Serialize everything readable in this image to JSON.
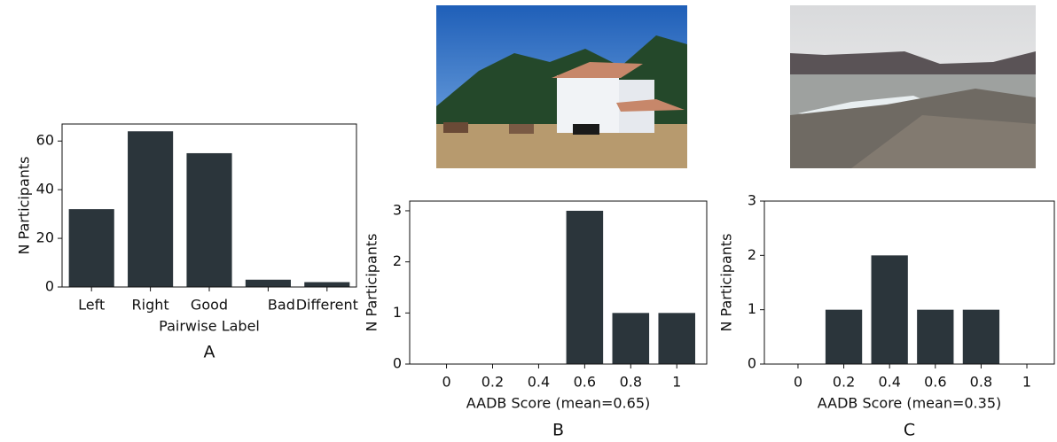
{
  "chart_data": [
    {
      "type": "bar",
      "panel_label": "A",
      "xlabel": "Pairwise Label",
      "ylabel": "N Participants",
      "categories": [
        "Left",
        "Right",
        "Good",
        "Bad",
        "Different"
      ],
      "values": [
        32,
        64,
        55,
        3,
        2
      ],
      "color": "#2b353b",
      "ylim": [
        0,
        67
      ],
      "yticks": [
        0,
        20,
        40,
        60
      ]
    },
    {
      "type": "bar",
      "panel_label": "B",
      "xlabel": "AADB Score (mean=0.65)",
      "ylabel": "N Participants",
      "x": [
        0,
        0.2,
        0.4,
        0.6,
        0.8,
        1
      ],
      "values": [
        0,
        0,
        0,
        3,
        1,
        1
      ],
      "color": "#2b353b",
      "xlim": [
        -0.16,
        1.13
      ],
      "xticks": [
        0,
        0.2,
        0.4,
        0.6,
        0.8,
        1
      ],
      "ylim": [
        0,
        3.19
      ],
      "yticks": [
        0,
        1,
        2,
        3
      ]
    },
    {
      "type": "bar",
      "panel_label": "C",
      "xlabel": "AADB Score (mean=0.35)",
      "ylabel": "N Participants",
      "x": [
        0,
        0.2,
        0.4,
        0.6,
        0.8,
        1
      ],
      "values": [
        0,
        1,
        2,
        1,
        1,
        0
      ],
      "color": "#2b353b",
      "xlim": [
        -0.147,
        1.12
      ],
      "xticks": [
        0,
        0.2,
        0.4,
        0.6,
        0.8,
        1
      ],
      "ylim": [
        0,
        3
      ],
      "yticks": [
        0,
        1,
        2,
        3
      ]
    }
  ]
}
